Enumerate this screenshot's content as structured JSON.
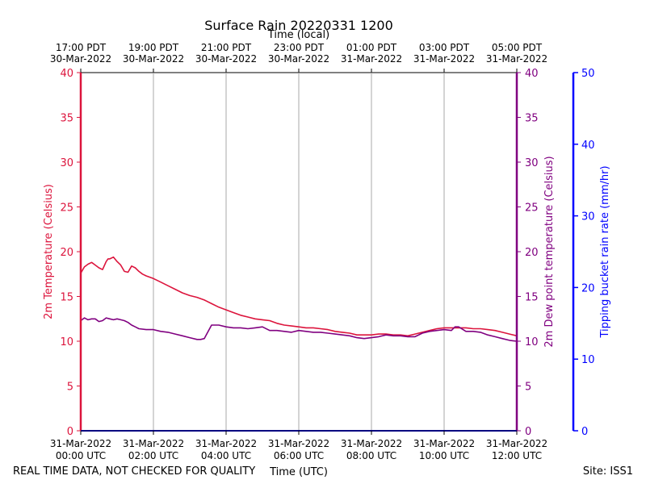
{
  "chart_data": {
    "type": "line",
    "title": "Surface Rain 20220331 1200",
    "top_axis_label": "Time (local)",
    "xlabel": "Time (UTC)",
    "ylabel_left": "2m Temperature (Celsius)",
    "ylabel_right": "2m Dew point temperature (Celsius)",
    "ylabel_far_right": "Tipping bucket rain rate (mm/hr)",
    "footer_left": "REAL TIME DATA, NOT CHECKED FOR QUALITY",
    "footer_right": "Site: ISS1",
    "xlim_hours": [
      0,
      12
    ],
    "ylim": [
      0,
      40
    ],
    "ylim_far_right": [
      0,
      50
    ],
    "yticks": [
      "0",
      "5",
      "10",
      "15",
      "20",
      "25",
      "30",
      "35",
      "40"
    ],
    "yticks_far_right": [
      "0",
      "10",
      "20",
      "30",
      "40",
      "50"
    ],
    "bottom_ticks": [
      {
        "hour": 0,
        "line1": "31-Mar-2022",
        "line2": "00:00 UTC"
      },
      {
        "hour": 2,
        "line1": "31-Mar-2022",
        "line2": "02:00 UTC"
      },
      {
        "hour": 4,
        "line1": "31-Mar-2022",
        "line2": "04:00 UTC"
      },
      {
        "hour": 6,
        "line1": "31-Mar-2022",
        "line2": "06:00 UTC"
      },
      {
        "hour": 8,
        "line1": "31-Mar-2022",
        "line2": "08:00 UTC"
      },
      {
        "hour": 10,
        "line1": "31-Mar-2022",
        "line2": "10:00 UTC"
      },
      {
        "hour": 12,
        "line1": "31-Mar-2022",
        "line2": "12:00 UTC"
      }
    ],
    "top_ticks": [
      {
        "hour": 0,
        "line1": "17:00 PDT",
        "line2": "30-Mar-2022"
      },
      {
        "hour": 2,
        "line1": "19:00 PDT",
        "line2": "30-Mar-2022"
      },
      {
        "hour": 4,
        "line1": "21:00 PDT",
        "line2": "30-Mar-2022"
      },
      {
        "hour": 6,
        "line1": "23:00 PDT",
        "line2": "30-Mar-2022"
      },
      {
        "hour": 8,
        "line1": "01:00 PDT",
        "line2": "31-Mar-2022"
      },
      {
        "hour": 10,
        "line1": "03:00 PDT",
        "line2": "31-Mar-2022"
      },
      {
        "hour": 12,
        "line1": "05:00 PDT",
        "line2": "31-Mar-2022"
      }
    ],
    "series": [
      {
        "name": "2m Temperature",
        "color": "#dc143c",
        "x": [
          0,
          0.1,
          0.2,
          0.3,
          0.4,
          0.5,
          0.6,
          0.7,
          0.75,
          0.8,
          0.9,
          1.0,
          1.1,
          1.2,
          1.3,
          1.4,
          1.5,
          1.6,
          1.7,
          1.8,
          2.0,
          2.2,
          2.4,
          2.6,
          2.8,
          3.0,
          3.2,
          3.4,
          3.6,
          3.8,
          4.0,
          4.2,
          4.4,
          4.6,
          4.8,
          5.0,
          5.2,
          5.4,
          5.6,
          5.8,
          6.0,
          6.2,
          6.4,
          6.6,
          6.8,
          7.0,
          7.2,
          7.4,
          7.6,
          7.8,
          8.0,
          8.2,
          8.4,
          8.6,
          8.8,
          9.0,
          9.2,
          9.4,
          9.6,
          9.8,
          10.0,
          10.2,
          10.4,
          10.6,
          10.8,
          11.0,
          11.2,
          11.4,
          11.6,
          11.8,
          12.0
        ],
        "values": [
          17.6,
          18.3,
          18.6,
          18.8,
          18.5,
          18.2,
          18.0,
          18.9,
          19.2,
          19.2,
          19.4,
          18.9,
          18.5,
          17.8,
          17.7,
          18.4,
          18.2,
          17.8,
          17.5,
          17.3,
          17.0,
          16.6,
          16.2,
          15.8,
          15.4,
          15.1,
          14.9,
          14.6,
          14.2,
          13.8,
          13.5,
          13.2,
          12.9,
          12.7,
          12.5,
          12.4,
          12.3,
          12.0,
          11.8,
          11.7,
          11.6,
          11.5,
          11.5,
          11.4,
          11.3,
          11.1,
          11.0,
          10.9,
          10.7,
          10.7,
          10.7,
          10.8,
          10.8,
          10.7,
          10.7,
          10.6,
          10.8,
          11.0,
          11.2,
          11.4,
          11.5,
          11.5,
          11.5,
          11.5,
          11.4,
          11.4,
          11.3,
          11.2,
          11.0,
          10.8,
          10.6
        ]
      },
      {
        "name": "2m Dew point temperature",
        "color": "#800080",
        "x": [
          0,
          0.1,
          0.2,
          0.3,
          0.4,
          0.5,
          0.6,
          0.7,
          0.8,
          0.9,
          1.0,
          1.1,
          1.2,
          1.3,
          1.4,
          1.5,
          1.6,
          1.8,
          2.0,
          2.2,
          2.4,
          2.6,
          2.8,
          3.0,
          3.2,
          3.3,
          3.4,
          3.6,
          3.8,
          4.0,
          4.2,
          4.4,
          4.6,
          4.8,
          5.0,
          5.2,
          5.4,
          5.6,
          5.8,
          6.0,
          6.2,
          6.4,
          6.6,
          6.8,
          7.0,
          7.2,
          7.4,
          7.6,
          7.8,
          8.0,
          8.2,
          8.4,
          8.6,
          8.8,
          9.0,
          9.2,
          9.4,
          9.6,
          9.8,
          10.0,
          10.2,
          10.3,
          10.4,
          10.6,
          10.8,
          11.0,
          11.2,
          11.4,
          11.6,
          11.8,
          12.0
        ],
        "values": [
          12.3,
          12.6,
          12.4,
          12.5,
          12.5,
          12.2,
          12.3,
          12.6,
          12.5,
          12.4,
          12.5,
          12.4,
          12.3,
          12.1,
          11.8,
          11.6,
          11.4,
          11.3,
          11.3,
          11.1,
          11.0,
          10.8,
          10.6,
          10.4,
          10.2,
          10.2,
          10.3,
          11.8,
          11.8,
          11.6,
          11.5,
          11.5,
          11.4,
          11.5,
          11.6,
          11.2,
          11.2,
          11.1,
          11.0,
          11.2,
          11.1,
          11.0,
          11.0,
          10.9,
          10.8,
          10.7,
          10.6,
          10.4,
          10.3,
          10.4,
          10.5,
          10.7,
          10.6,
          10.6,
          10.5,
          10.5,
          10.9,
          11.1,
          11.2,
          11.3,
          11.2,
          11.6,
          11.6,
          11.1,
          11.1,
          11.0,
          10.7,
          10.5,
          10.3,
          10.1,
          10.0
        ]
      }
    ],
    "colors": {
      "temp_axis": "#dc143c",
      "dew_axis": "#800080",
      "rain_axis": "#0000ff",
      "grid": "#aaaaaa"
    }
  }
}
